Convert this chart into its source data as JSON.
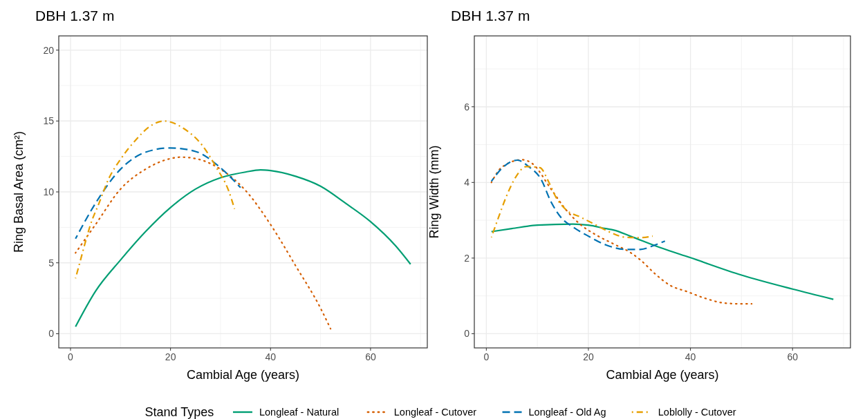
{
  "chart_data": [
    {
      "type": "line",
      "title": "DBH 1.37 m",
      "xlabel": "Cambial Age (years)",
      "ylabel": "Ring Basal Area (cm²)",
      "xlim": [
        -2.35,
        71.35
      ],
      "xticks": [
        0,
        20,
        40,
        60
      ],
      "ylim": [
        -1,
        21
      ],
      "yticks": [
        0,
        5,
        10,
        15,
        20
      ],
      "grid": true,
      "legend": "bottom",
      "legend_title": "Stand Types",
      "series": [
        {
          "name": "Longleaf - Natural",
          "color": "#009E73",
          "line_style": "solid",
          "x": [
            1,
            5,
            10,
            15,
            20,
            25,
            30,
            35,
            38,
            40,
            45,
            50,
            55,
            60,
            65,
            68
          ],
          "values": [
            0.5,
            3.0,
            5.2,
            7.2,
            8.9,
            10.2,
            11.0,
            11.4,
            11.55,
            11.5,
            11.1,
            10.4,
            9.2,
            7.9,
            6.2,
            4.9
          ]
        },
        {
          "name": "Longleaf - Cutover",
          "color": "#D55E00",
          "line_style": "dotted",
          "x": [
            1,
            5,
            10,
            15,
            20,
            22,
            25,
            30,
            35,
            40,
            45,
            50,
            52
          ],
          "values": [
            5.7,
            7.7,
            10.2,
            11.6,
            12.35,
            12.45,
            12.35,
            11.6,
            10.1,
            7.7,
            4.8,
            1.8,
            0.35
          ]
        },
        {
          "name": "Longleaf - Old Ag",
          "color": "#0072B2",
          "line_style": "dashed",
          "x": [
            1,
            5,
            10,
            15,
            20,
            25,
            30,
            34
          ],
          "values": [
            6.7,
            9.2,
            11.6,
            12.8,
            13.1,
            12.85,
            11.7,
            10.3
          ]
        },
        {
          "name": "Loblolly - Cutover",
          "color": "#E69F00",
          "line_style": "dashdot",
          "x": [
            1,
            2,
            3,
            4,
            5.7,
            7.6,
            10,
            12.9,
            15.8,
            18.7,
            22.5,
            26.3,
            29.2,
            31.6,
            32.8
          ],
          "values": [
            3.9,
            5.2,
            6.5,
            7.7,
            9.2,
            10.9,
            12.3,
            13.6,
            14.6,
            15.0,
            14.5,
            13.3,
            11.7,
            10.1,
            8.8
          ]
        }
      ]
    },
    {
      "type": "line",
      "title": "DBH 1.37 m",
      "xlabel": "Cambial Age (years)",
      "ylabel": "Ring Width (mm)",
      "xlim": [
        -2.35,
        71.35
      ],
      "xticks": [
        0,
        20,
        40,
        60
      ],
      "ylim": [
        -0.375,
        7.875
      ],
      "yticks": [
        0,
        2,
        4,
        6
      ],
      "grid": true,
      "series": [
        {
          "color": "#009E73",
          "line_style": "solid",
          "x": [
            1,
            5,
            10,
            17,
            20,
            23.4,
            25,
            28.2,
            34,
            40,
            50,
            60,
            68
          ],
          "values": [
            2.7,
            2.78,
            2.87,
            2.9,
            2.87,
            2.78,
            2.74,
            2.58,
            2.28,
            2.01,
            1.55,
            1.18,
            0.91
          ]
        },
        {
          "color": "#D55E00",
          "line_style": "dotted",
          "x": [
            1,
            3,
            7,
            9,
            12.7,
            15.6,
            18.5,
            21.4,
            25.3,
            28.2,
            30.2,
            33.1,
            36,
            39.4,
            42.8,
            46.7,
            50,
            52
          ],
          "values": [
            4.0,
            4.4,
            4.6,
            4.5,
            3.82,
            3.28,
            2.88,
            2.62,
            2.35,
            2.15,
            1.95,
            1.58,
            1.28,
            1.11,
            0.94,
            0.81,
            0.79,
            0.79
          ]
        },
        {
          "color": "#0072B2",
          "line_style": "dashed",
          "x": [
            1,
            3.4,
            6.1,
            8.3,
            10.7,
            12.7,
            14.6,
            17,
            20,
            23.4,
            27.3,
            30.2,
            33.1,
            35
          ],
          "values": [
            4.03,
            4.42,
            4.59,
            4.42,
            4.09,
            3.48,
            3.08,
            2.82,
            2.58,
            2.35,
            2.23,
            2.23,
            2.35,
            2.45
          ]
        },
        {
          "color": "#E69F00",
          "line_style": "dashdot",
          "x": [
            1,
            2.4,
            3.9,
            5.8,
            7.8,
            10.5,
            12.2,
            13.6,
            15.6,
            18.5,
            21.4,
            24.3,
            27.3,
            30.2,
            32.6
          ],
          "values": [
            2.55,
            3.08,
            3.62,
            4.15,
            4.42,
            4.39,
            4.02,
            3.62,
            3.28,
            3.08,
            2.88,
            2.68,
            2.55,
            2.54,
            2.58
          ]
        }
      ]
    }
  ]
}
